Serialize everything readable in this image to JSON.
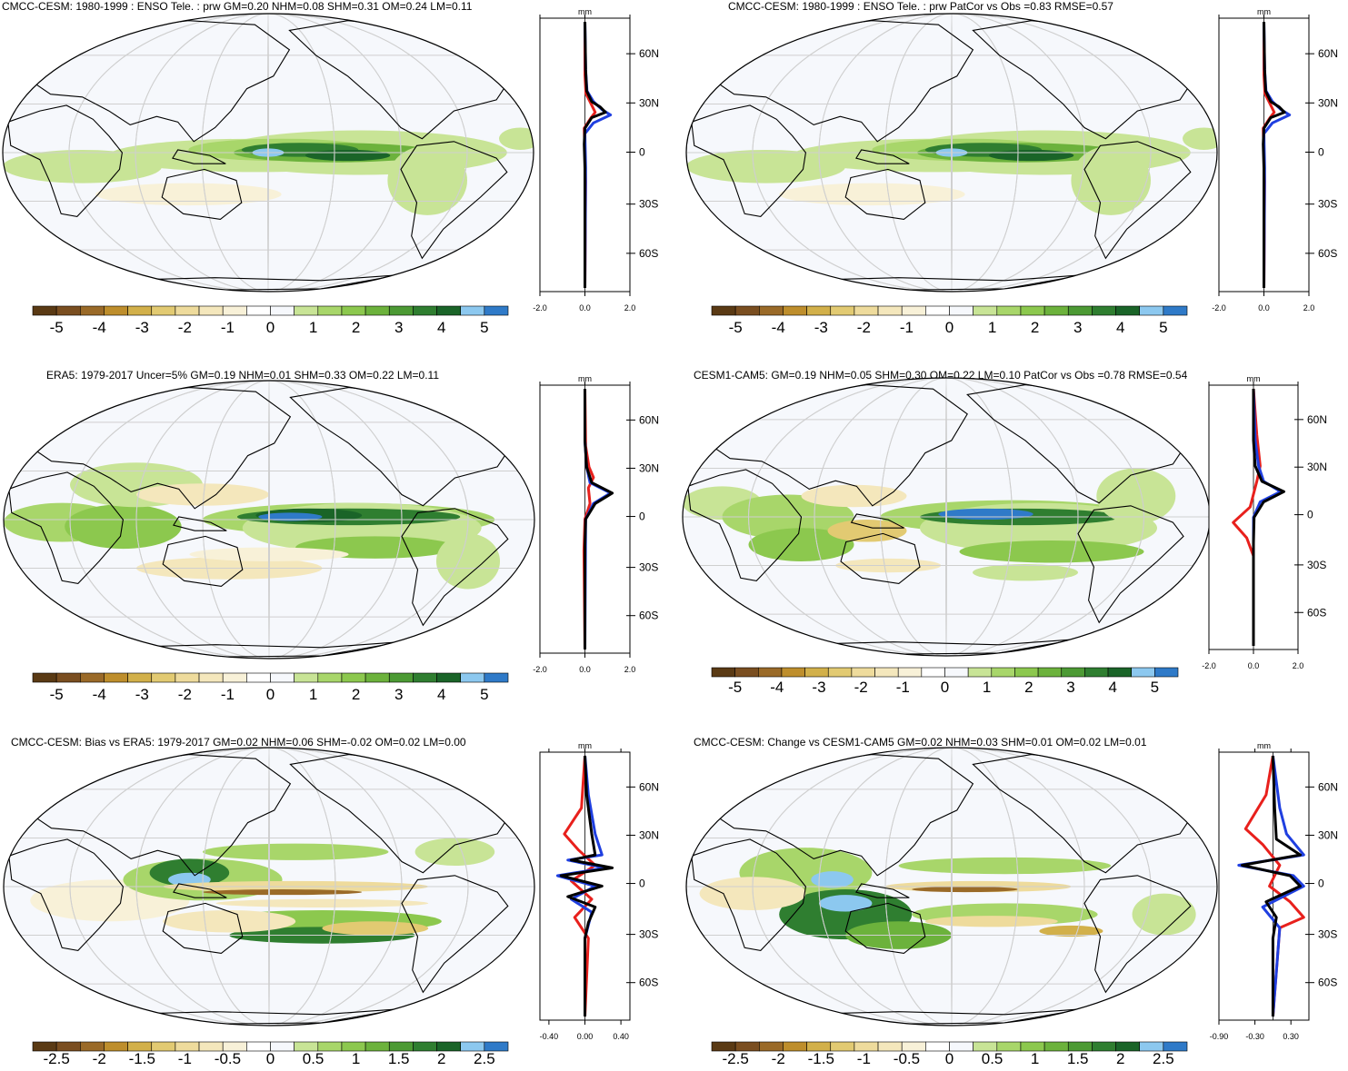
{
  "palette": {
    "colors": [
      "#5a3a14",
      "#7a4e20",
      "#9a6a28",
      "#be8e2c",
      "#d2b04a",
      "#e2ca72",
      "#eedb9c",
      "#f4e7bc",
      "#f8f1d8",
      "#ffffff",
      "#f6f8fc",
      "#c8e496",
      "#a8d66a",
      "#8cc84e",
      "#6cb23c",
      "#4c9a34",
      "#2f7e30",
      "#1a6428",
      "#8cc8ef",
      "#2f7ac8"
    ],
    "ocean": "#f6f8fc",
    "land_line": "#000000",
    "grid": "#cfcfcf",
    "curve_colors": {
      "model": "#1f3fe0",
      "obs": "#e8201c",
      "total": "#000000"
    }
  },
  "chart_data": [
    {
      "id": "p1",
      "type": "heatmap",
      "title": "CMCC-CESM: 1980-1999 : ENSO Tele. : prw GM=0.20 NHM=0.08 SHM=0.31 OM=0.24 LM=0.11",
      "colorbar_ticks": [
        "-5",
        "-4",
        "-3",
        "-2",
        "-1",
        "0",
        "1",
        "2",
        "3",
        "4",
        "5"
      ],
      "zonal": {
        "unit": "mm",
        "xticks": [
          "-2.0",
          "0.0",
          "2.0"
        ],
        "xlim": [
          -2.0,
          2.0
        ],
        "yticks": [
          "60N",
          "30N",
          "0",
          "30S",
          "60S"
        ]
      },
      "pattern": "coarse"
    },
    {
      "id": "p2",
      "type": "heatmap",
      "title": "CMCC-CESM: 1980-1999 : ENSO Tele. : prw PatCor vs Obs =0.83 RMSE=0.57",
      "colorbar_ticks": [
        "-5",
        "-4",
        "-3",
        "-2",
        "-1",
        "0",
        "1",
        "2",
        "3",
        "4",
        "5"
      ],
      "zonal": {
        "unit": "mm",
        "xticks": [
          "-2.0",
          "0.0",
          "2.0"
        ],
        "xlim": [
          -2.0,
          2.0
        ],
        "yticks": [
          "60N",
          "30N",
          "0",
          "30S",
          "60S"
        ]
      },
      "pattern": "coarse"
    },
    {
      "id": "p3",
      "type": "heatmap",
      "title": "ERA5: 1979-2017 Uncer=5% GM=0.19 NHM=0.01 SHM=0.33 OM=0.22 LM=0.11",
      "colorbar_ticks": [
        "-5",
        "-4",
        "-3",
        "-2",
        "-1",
        "0",
        "1",
        "2",
        "3",
        "4",
        "5"
      ],
      "zonal": {
        "unit": "mm",
        "xticks": [
          "-2.0",
          "0.0",
          "2.0"
        ],
        "xlim": [
          -2.0,
          2.0
        ],
        "yticks": [
          "60N",
          "30N",
          "0",
          "30S",
          "60S"
        ]
      },
      "pattern": "era5"
    },
    {
      "id": "p4",
      "type": "heatmap",
      "title": "CESM1-CAM5: GM=0.19 NHM=0.05 SHM=0.30 OM=0.22 LM=0.10 PatCor vs Obs =0.78 RMSE=0.54",
      "colorbar_ticks": [
        "-5",
        "-4",
        "-3",
        "-2",
        "-1",
        "0",
        "1",
        "2",
        "3",
        "4",
        "5"
      ],
      "zonal": {
        "unit": "mm",
        "xticks": [
          "-2.0",
          "0.0",
          "2.0"
        ],
        "xlim": [
          -2.0,
          2.0
        ],
        "yticks": [
          "60N",
          "30N",
          "0",
          "30S",
          "60S"
        ]
      },
      "pattern": "cesm"
    },
    {
      "id": "p5",
      "type": "heatmap",
      "title": "CMCC-CESM: Bias vs ERA5: 1979-2017 GM=0.02 NHM=0.06 SHM=-0.02 OM=0.02 LM=0.00",
      "colorbar_ticks": [
        "-2.5",
        "-2",
        "-1.5",
        "-1",
        "-0.5",
        "0",
        "0.5",
        "1",
        "1.5",
        "2",
        "2.5"
      ],
      "zonal": {
        "unit": "mm",
        "xticks": [
          "-0.40",
          "0.00",
          "0.40"
        ],
        "xlim": [
          -0.5,
          0.5
        ],
        "yticks": [
          "60N",
          "30N",
          "0",
          "30S",
          "60S"
        ]
      },
      "pattern": "bias"
    },
    {
      "id": "p6",
      "type": "heatmap",
      "title": "CMCC-CESM: Change vs CESM1-CAM5 GM=0.02 NHM=0.03 SHM=0.01 OM=0.02 LM=0.01",
      "colorbar_ticks": [
        "-2.5",
        "-2",
        "-1.5",
        "-1",
        "-0.5",
        "0",
        "0.5",
        "1",
        "1.5",
        "2",
        "2.5"
      ],
      "zonal": {
        "unit": "mm",
        "xticks": [
          "-0.90",
          "-0.30",
          "0.30"
        ],
        "xlim": [
          -0.9,
          0.6
        ],
        "yticks": [
          "60N",
          "30N",
          "0",
          "30S",
          "60S"
        ]
      },
      "pattern": "change"
    }
  ]
}
